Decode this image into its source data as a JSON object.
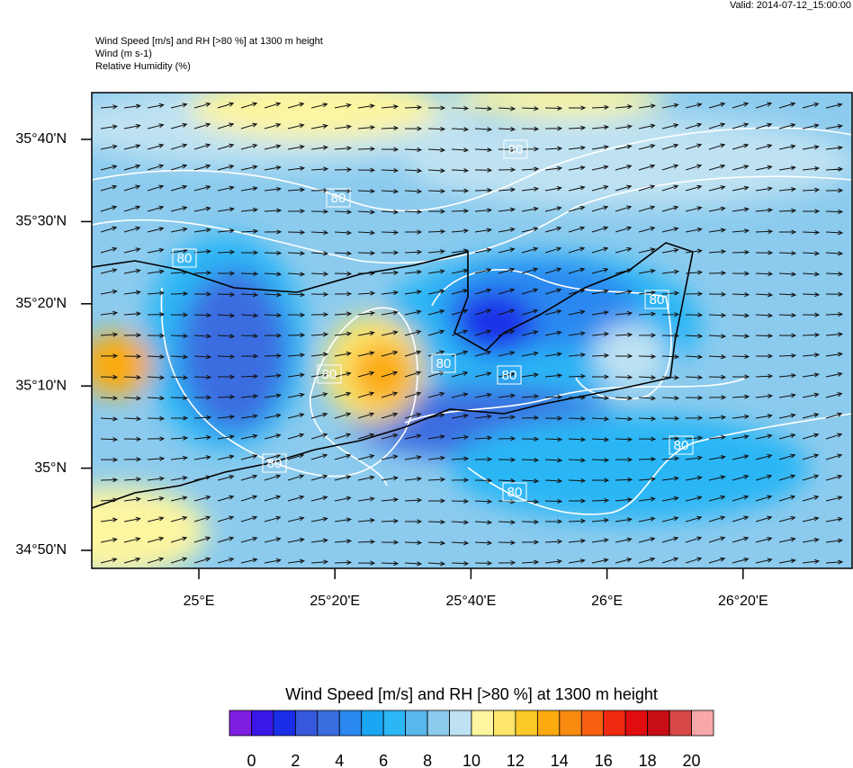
{
  "header": {
    "valid": "Valid: 2014-07-12_15:00:00",
    "lines": [
      "Wind Speed [m/s] and RH [>80 %] at 1300 m height",
      "Wind   (m s-1)",
      "Relative Humidity   (%)"
    ]
  },
  "map": {
    "lat_labels": [
      "35°40'N",
      "35°30'N",
      "35°20'N",
      "35°10'N",
      "35°N",
      "34°50'N"
    ],
    "lon_labels": [
      "25°E",
      "25°20'E",
      "25°40'E",
      "26°E",
      "26°20'E"
    ],
    "contour_labels": [
      "80",
      "80",
      "80",
      "80",
      "80",
      "80",
      "80",
      "80",
      "80",
      "80"
    ]
  },
  "colorbar": {
    "title": "Wind Speed [m/s] and RH [>80 %] at 1300 m height",
    "lim": [
      -1,
      21
    ],
    "ticks": [
      0,
      2,
      4,
      6,
      8,
      10,
      12,
      14,
      16,
      18,
      20
    ],
    "colors": [
      "#7f1fe0",
      "#3a16e8",
      "#1a2ee8",
      "#3558dc",
      "#3a6de0",
      "#2a88f0",
      "#1aa6f2",
      "#2cb6f5",
      "#58b7ec",
      "#8ccbee",
      "#bfe2f2",
      "#fdf5a0",
      "#fde66a",
      "#fdc928",
      "#fbaa10",
      "#f98a10",
      "#f86010",
      "#f02a10",
      "#e00c10",
      "#c80e14",
      "#d84848",
      "#f8a8a8"
    ]
  }
}
